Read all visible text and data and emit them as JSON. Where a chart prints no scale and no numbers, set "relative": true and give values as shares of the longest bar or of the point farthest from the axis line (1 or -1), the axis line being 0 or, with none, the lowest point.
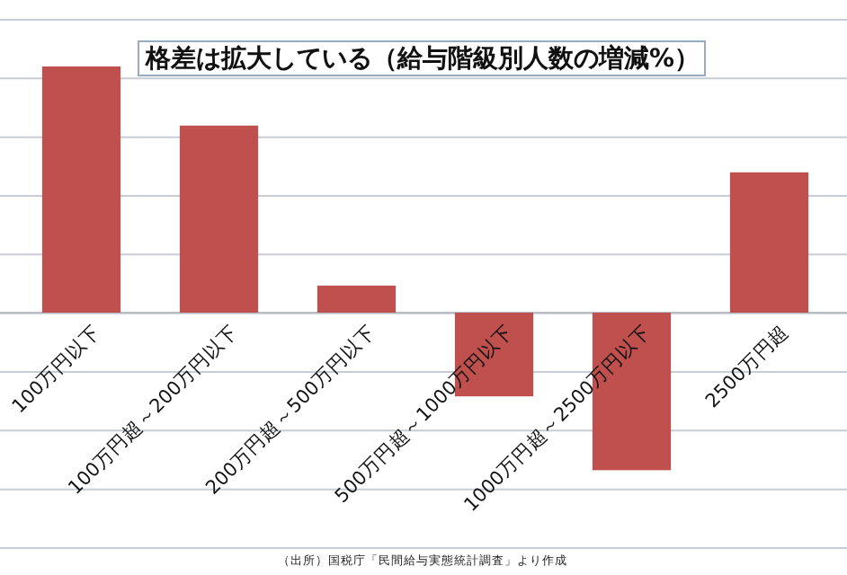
{
  "chart_data": {
    "type": "bar",
    "title": "格差は拡大している（給与階級別人数の増減%）",
    "categories": [
      "100万円以下",
      "100万円超～200万円以下",
      "200万円超～500万円以下",
      "500万円超～1000万円以下",
      "1000万円超～2500万円以下",
      "2500万円超"
    ],
    "values": [
      1,
      0.76,
      0.11,
      -0.34,
      -0.64,
      0.57
    ],
    "color": "#c0504d",
    "relative": true,
    "grid": "y",
    "annotations": [
      "（出所）国税庁「民間給与実態統計調査」より作成"
    ]
  }
}
